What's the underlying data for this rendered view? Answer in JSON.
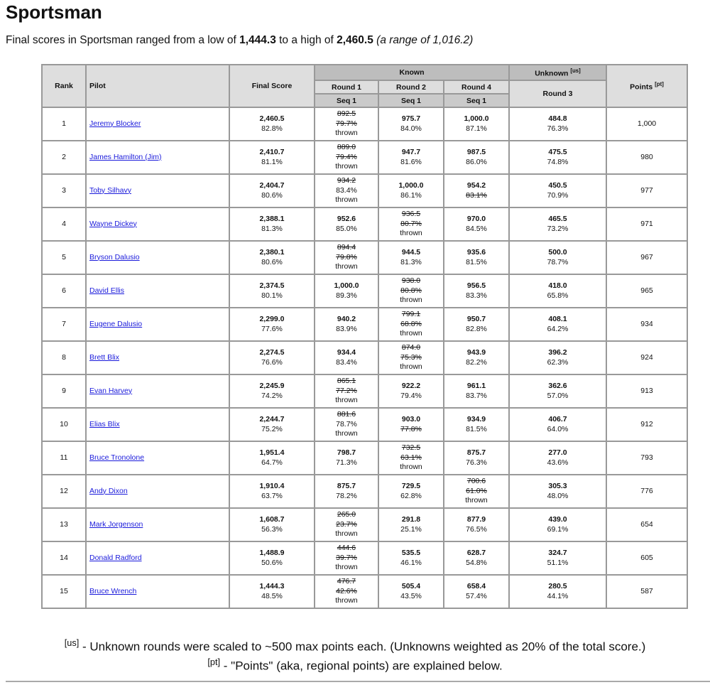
{
  "title": "Sportsman",
  "summary": {
    "prefix": "Final scores in Sportsman ranged from a low of ",
    "low": "1,444.3",
    "middle": " to a high of ",
    "high": "2,460.5",
    "range": "(a range of 1,016.2)"
  },
  "table": {
    "headers": {
      "rank": "Rank",
      "pilot": "Pilot",
      "final_score": "Final Score",
      "known": "Known",
      "unknown": "Unknown",
      "unknown_note": "[us]",
      "round1": "Round 1",
      "round2": "Round 2",
      "round4": "Round 4",
      "round3": "Round 3",
      "seq": "Seq 1",
      "points": "Points",
      "points_note": "[pt]"
    },
    "thrown_label": "thrown",
    "rows": [
      {
        "rank": "1",
        "pilot": "Jeremy Blocker",
        "final": "2,460.5",
        "final_pct": "82.8%",
        "r1": {
          "score": "892.5",
          "pct": "79.7%",
          "ss": true,
          "ps": true,
          "thrown": true
        },
        "r2": {
          "score": "975.7",
          "pct": "84.0%"
        },
        "r4": {
          "score": "1,000.0",
          "pct": "87.1%"
        },
        "r3": {
          "score": "484.8",
          "pct": "76.3%"
        },
        "points": "1,000"
      },
      {
        "rank": "2",
        "pilot": "James Hamilton (Jim)",
        "final": "2,410.7",
        "final_pct": "81.1%",
        "r1": {
          "score": "889.0",
          "pct": "79.4%",
          "ss": true,
          "ps": true,
          "thrown": true
        },
        "r2": {
          "score": "947.7",
          "pct": "81.6%"
        },
        "r4": {
          "score": "987.5",
          "pct": "86.0%"
        },
        "r3": {
          "score": "475.5",
          "pct": "74.8%"
        },
        "points": "980"
      },
      {
        "rank": "3",
        "pilot": "Toby Silhavy",
        "final": "2,404.7",
        "final_pct": "80.6%",
        "r1": {
          "score": "934.2",
          "pct": "83.4%",
          "ss": true,
          "ps": false,
          "thrown": true
        },
        "r2": {
          "score": "1,000.0",
          "pct": "86.1%"
        },
        "r4": {
          "score": "954.2",
          "pct": "83.1%",
          "ps": true
        },
        "r3": {
          "score": "450.5",
          "pct": "70.9%"
        },
        "points": "977"
      },
      {
        "rank": "4",
        "pilot": "Wayne Dickey",
        "final": "2,388.1",
        "final_pct": "81.3%",
        "r1": {
          "score": "952.6",
          "pct": "85.0%"
        },
        "r2": {
          "score": "936.5",
          "pct": "80.7%",
          "ss": true,
          "ps": true,
          "thrown": true
        },
        "r4": {
          "score": "970.0",
          "pct": "84.5%"
        },
        "r3": {
          "score": "465.5",
          "pct": "73.2%"
        },
        "points": "971"
      },
      {
        "rank": "5",
        "pilot": "Bryson Dalusio",
        "final": "2,380.1",
        "final_pct": "80.6%",
        "r1": {
          "score": "894.4",
          "pct": "79.8%",
          "ss": true,
          "ps": true,
          "thrown": true
        },
        "r2": {
          "score": "944.5",
          "pct": "81.3%"
        },
        "r4": {
          "score": "935.6",
          "pct": "81.5%"
        },
        "r3": {
          "score": "500.0",
          "pct": "78.7%"
        },
        "points": "967"
      },
      {
        "rank": "6",
        "pilot": "David Ellis",
        "final": "2,374.5",
        "final_pct": "80.1%",
        "r1": {
          "score": "1,000.0",
          "pct": "89.3%"
        },
        "r2": {
          "score": "938.0",
          "pct": "80.8%",
          "ss": true,
          "ps": true,
          "thrown": true
        },
        "r4": {
          "score": "956.5",
          "pct": "83.3%"
        },
        "r3": {
          "score": "418.0",
          "pct": "65.8%"
        },
        "points": "965"
      },
      {
        "rank": "7",
        "pilot": "Eugene Dalusio",
        "final": "2,299.0",
        "final_pct": "77.6%",
        "r1": {
          "score": "940.2",
          "pct": "83.9%"
        },
        "r2": {
          "score": "799.1",
          "pct": "68.8%",
          "ss": true,
          "ps": true,
          "thrown": true
        },
        "r4": {
          "score": "950.7",
          "pct": "82.8%"
        },
        "r3": {
          "score": "408.1",
          "pct": "64.2%"
        },
        "points": "934"
      },
      {
        "rank": "8",
        "pilot": "Brett Blix",
        "final": "2,274.5",
        "final_pct": "76.6%",
        "r1": {
          "score": "934.4",
          "pct": "83.4%"
        },
        "r2": {
          "score": "874.0",
          "pct": "75.3%",
          "ss": true,
          "ps": true,
          "thrown": true
        },
        "r4": {
          "score": "943.9",
          "pct": "82.2%"
        },
        "r3": {
          "score": "396.2",
          "pct": "62.3%"
        },
        "points": "924"
      },
      {
        "rank": "9",
        "pilot": "Evan Harvey",
        "final": "2,245.9",
        "final_pct": "74.2%",
        "r1": {
          "score": "865.1",
          "pct": "77.2%",
          "ss": true,
          "ps": true,
          "thrown": true
        },
        "r2": {
          "score": "922.2",
          "pct": "79.4%"
        },
        "r4": {
          "score": "961.1",
          "pct": "83.7%"
        },
        "r3": {
          "score": "362.6",
          "pct": "57.0%"
        },
        "points": "913"
      },
      {
        "rank": "10",
        "pilot": "Elias Blix",
        "final": "2,244.7",
        "final_pct": "75.2%",
        "r1": {
          "score": "881.6",
          "pct": "78.7%",
          "ss": true,
          "ps": false,
          "thrown": true
        },
        "r2": {
          "score": "903.0",
          "pct": "77.8%",
          "ps": true
        },
        "r4": {
          "score": "934.9",
          "pct": "81.5%"
        },
        "r3": {
          "score": "406.7",
          "pct": "64.0%"
        },
        "points": "912"
      },
      {
        "rank": "11",
        "pilot": "Bruce Tronolone",
        "final": "1,951.4",
        "final_pct": "64.7%",
        "r1": {
          "score": "798.7",
          "pct": "71.3%"
        },
        "r2": {
          "score": "732.5",
          "pct": "63.1%",
          "ss": true,
          "ps": true,
          "thrown": true
        },
        "r4": {
          "score": "875.7",
          "pct": "76.3%"
        },
        "r3": {
          "score": "277.0",
          "pct": "43.6%"
        },
        "points": "793"
      },
      {
        "rank": "12",
        "pilot": "Andy Dixon",
        "final": "1,910.4",
        "final_pct": "63.7%",
        "r1": {
          "score": "875.7",
          "pct": "78.2%"
        },
        "r2": {
          "score": "729.5",
          "pct": "62.8%"
        },
        "r4": {
          "score": "700.6",
          "pct": "61.0%",
          "ss": true,
          "ps": true,
          "thrown": true
        },
        "r3": {
          "score": "305.3",
          "pct": "48.0%"
        },
        "points": "776"
      },
      {
        "rank": "13",
        "pilot": "Mark Jorgenson",
        "final": "1,608.7",
        "final_pct": "56.3%",
        "r1": {
          "score": "265.0",
          "pct": "23.7%",
          "ss": true,
          "ps": true,
          "thrown": true
        },
        "r2": {
          "score": "291.8",
          "pct": "25.1%"
        },
        "r4": {
          "score": "877.9",
          "pct": "76.5%"
        },
        "r3": {
          "score": "439.0",
          "pct": "69.1%"
        },
        "points": "654"
      },
      {
        "rank": "14",
        "pilot": "Donald Radford",
        "final": "1,488.9",
        "final_pct": "50.6%",
        "r1": {
          "score": "444.6",
          "pct": "39.7%",
          "ss": true,
          "ps": true,
          "thrown": true
        },
        "r2": {
          "score": "535.5",
          "pct": "46.1%"
        },
        "r4": {
          "score": "628.7",
          "pct": "54.8%"
        },
        "r3": {
          "score": "324.7",
          "pct": "51.1%"
        },
        "points": "605"
      },
      {
        "rank": "15",
        "pilot": "Bruce Wrench",
        "final": "1,444.3",
        "final_pct": "48.5%",
        "r1": {
          "score": "476.7",
          "pct": "42.6%",
          "ss": true,
          "ps": true,
          "thrown": true
        },
        "r2": {
          "score": "505.4",
          "pct": "43.5%"
        },
        "r4": {
          "score": "658.4",
          "pct": "57.4%"
        },
        "r3": {
          "score": "280.5",
          "pct": "44.1%"
        },
        "points": "587"
      }
    ]
  },
  "footnotes": {
    "us_mark": "[us]",
    "us_text": " - Unknown rounds were scaled to ~500 max points each. (Unknowns weighted as 20% of the total score.)",
    "pt_mark": "[pt]",
    "pt_text": " - \"Points\" (aka, regional points) are explained below."
  }
}
